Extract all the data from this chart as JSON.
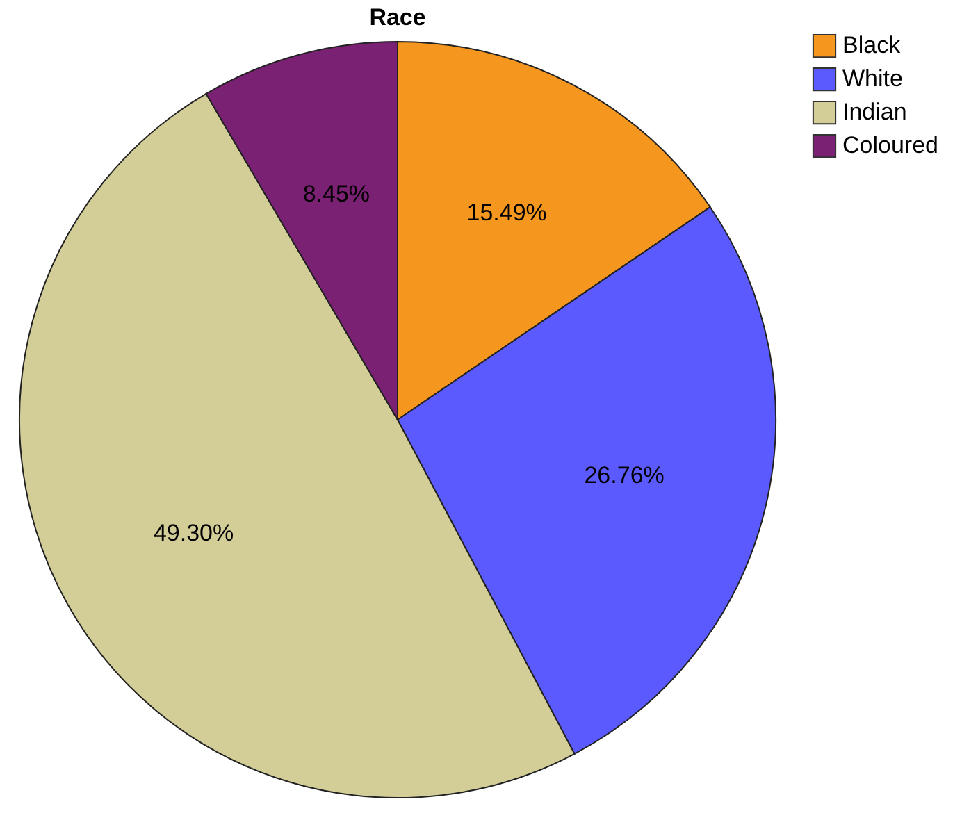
{
  "chart_data": {
    "type": "pie",
    "title": "Race",
    "categories": [
      "Black",
      "White",
      "Indian",
      "Coloured"
    ],
    "values": [
      15.49,
      26.76,
      49.3,
      8.45
    ],
    "value_labels": [
      "15.49%",
      "26.76%",
      "49.30%",
      "8.45%"
    ],
    "colors": [
      "#f5961e",
      "#5a5aff",
      "#d3cd98",
      "#7b2173"
    ],
    "legend": "top right"
  }
}
